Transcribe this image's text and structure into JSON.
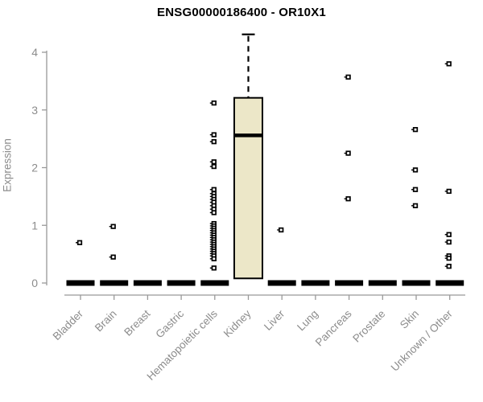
{
  "chart_data": {
    "type": "boxplot",
    "title": "ENSG00000186400 - OR10X1",
    "ylabel": "Expression",
    "xlabel": "",
    "ylim": [
      0,
      4
    ],
    "yticks": [
      0,
      1,
      2,
      3,
      4
    ],
    "grid": false,
    "legend": "none",
    "categories": [
      "Bladder",
      "Brain",
      "Breast",
      "Gastric",
      "Hematopoietic cells",
      "Kidney",
      "Liver",
      "Lung",
      "Pancreas",
      "Prostate",
      "Skin",
      "Unknown / Other"
    ],
    "boxes": [
      {
        "category": "Bladder",
        "q1": 0,
        "median": 0,
        "q3": 0,
        "whisker_low": 0,
        "whisker_high": 0,
        "outliers": [
          0.7
        ]
      },
      {
        "category": "Brain",
        "q1": 0,
        "median": 0,
        "q3": 0,
        "whisker_low": 0,
        "whisker_high": 0,
        "outliers": [
          0.98,
          0.45
        ]
      },
      {
        "category": "Breast",
        "q1": 0,
        "median": 0,
        "q3": 0,
        "whisker_low": 0,
        "whisker_high": 0,
        "outliers": []
      },
      {
        "category": "Gastric",
        "q1": 0,
        "median": 0,
        "q3": 0,
        "whisker_low": 0,
        "whisker_high": 0,
        "outliers": []
      },
      {
        "category": "Hematopoietic cells",
        "q1": 0,
        "median": 0,
        "q3": 0,
        "whisker_low": 0,
        "whisker_high": 0,
        "outliers": [
          3.12,
          2.57,
          2.45,
          2.1,
          2.02,
          1.62,
          1.55,
          1.5,
          1.45,
          1.4,
          1.34,
          1.28,
          1.22,
          1.03,
          0.99,
          0.95,
          0.91,
          0.87,
          0.83,
          0.79,
          0.75,
          0.71,
          0.67,
          0.63,
          0.59,
          0.55,
          0.51,
          0.47,
          0.42,
          0.26
        ]
      },
      {
        "category": "Kidney",
        "q1": 0.08,
        "median": 2.56,
        "q3": 3.21,
        "whisker_low": 0.08,
        "whisker_high": 4.31,
        "outliers": []
      },
      {
        "category": "Liver",
        "q1": 0,
        "median": 0,
        "q3": 0,
        "whisker_low": 0,
        "whisker_high": 0,
        "outliers": [
          0.92
        ]
      },
      {
        "category": "Lung",
        "q1": 0,
        "median": 0,
        "q3": 0,
        "whisker_low": 0,
        "whisker_high": 0,
        "outliers": []
      },
      {
        "category": "Pancreas",
        "q1": 0,
        "median": 0,
        "q3": 0,
        "whisker_low": 0,
        "whisker_high": 0,
        "outliers": [
          3.57,
          2.25,
          1.46
        ]
      },
      {
        "category": "Prostate",
        "q1": 0,
        "median": 0,
        "q3": 0,
        "whisker_low": 0,
        "whisker_high": 0,
        "outliers": []
      },
      {
        "category": "Skin",
        "q1": 0,
        "median": 0,
        "q3": 0,
        "whisker_low": 0,
        "whisker_high": 0,
        "outliers": [
          2.66,
          1.96,
          1.62,
          1.34
        ]
      },
      {
        "category": "Unknown / Other",
        "q1": 0,
        "median": 0,
        "q3": 0,
        "whisker_low": 0,
        "whisker_high": 0,
        "outliers": [
          3.8,
          1.59,
          0.84,
          0.71,
          0.47,
          0.43,
          0.29
        ]
      }
    ],
    "colors": {
      "box_fill": "#ece7c8",
      "box_stroke": "#000000",
      "median": "#000000",
      "collapsed_bar": "#000000",
      "outlier_stroke": "#000000",
      "outlier_fill": "#ffffff",
      "axis": "#999999",
      "tick_label": "#8c8c8c",
      "title": "#000000",
      "background": "#ffffff"
    }
  }
}
